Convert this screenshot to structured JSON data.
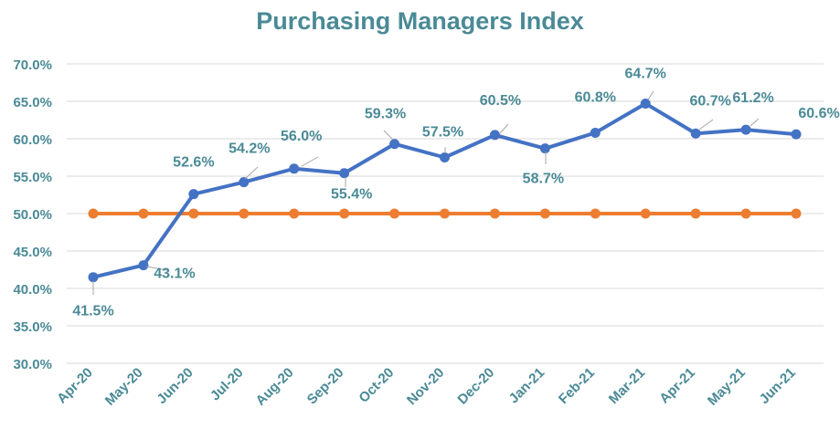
{
  "chart_data": {
    "type": "line",
    "title": "Purchasing Managers Index",
    "xlabel": "",
    "ylabel": "",
    "categories": [
      "Apr-20",
      "May-20",
      "Jun-20",
      "Jul-20",
      "Aug-20",
      "Sep-20",
      "Oct-20",
      "Nov-20",
      "Dec-20",
      "Jan-21",
      "Feb-21",
      "Mar-21",
      "Apr-21",
      "May-21",
      "Jun-21"
    ],
    "y_tick_labels": [
      "30.0%",
      "35.0%",
      "40.0%",
      "45.0%",
      "50.0%",
      "55.0%",
      "60.0%",
      "65.0%",
      "70.0%"
    ],
    "ylim": [
      30,
      70
    ],
    "grid": true,
    "legend": "none",
    "series": [
      {
        "color": "#4472c4",
        "values": [
          41.5,
          43.1,
          52.6,
          54.2,
          56.0,
          55.4,
          59.3,
          57.5,
          60.5,
          58.7,
          60.8,
          64.7,
          60.7,
          61.2,
          60.6
        ],
        "data_labels": [
          "41.5%",
          "43.1%",
          "52.6%",
          "54.2%",
          "56.0%",
          "55.4%",
          "59.3%",
          "57.5%",
          "60.5%",
          "58.7%",
          "60.8%",
          "64.7%",
          "60.7%",
          "61.2%",
          "60.6%"
        ]
      },
      {
        "color": "#ed7d31",
        "values": [
          50,
          50,
          50,
          50,
          50,
          50,
          50,
          50,
          50,
          50,
          50,
          50,
          50,
          50,
          50
        ]
      }
    ],
    "colors": {
      "title": "#4a8a96",
      "axis_text": "#4a8a96",
      "grid": "#d9d9d9"
    }
  }
}
